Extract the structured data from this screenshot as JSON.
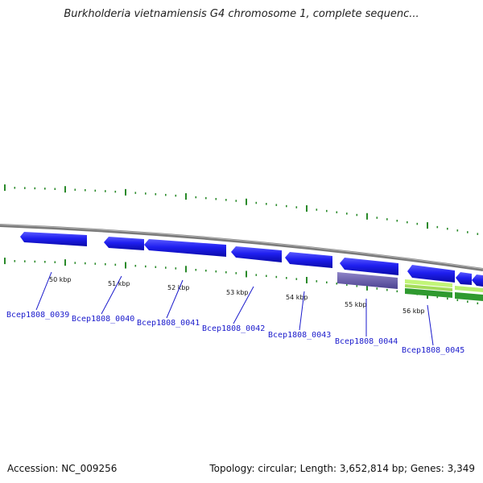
{
  "title": "Burkholderia vietnamiensis G4 chromosome 1, complete sequenc...",
  "footer": {
    "accession": "Accession: NC_009256",
    "summary": "Topology: circular; Length: 3,652,814 bp; Genes: 3,349"
  },
  "colors": {
    "gene_forward": "#1f1ff0",
    "gene_rna": "#6a5fa8",
    "gene_light": "#b8f070",
    "gene_green": "#3aa83a",
    "backbone": "#8a8a8a",
    "tick": "#2a8a2a",
    "label": "#1a1acc"
  },
  "ticks": [
    {
      "label": "50 kbp"
    },
    {
      "label": "51 kbp"
    },
    {
      "label": "52 kbp"
    },
    {
      "label": "53 kbp"
    },
    {
      "label": "54 kbp"
    },
    {
      "label": "55 kbp"
    },
    {
      "label": "56 kbp"
    }
  ],
  "genes": [
    {
      "label": "Bcep1808_0039"
    },
    {
      "label": "Bcep1808_0040"
    },
    {
      "label": "Bcep1808_0041"
    },
    {
      "label": "Bcep1808_0042"
    },
    {
      "label": "Bcep1808_0043"
    },
    {
      "label": "Bcep1808_0044"
    },
    {
      "label": "Bcep1808_0045"
    }
  ]
}
